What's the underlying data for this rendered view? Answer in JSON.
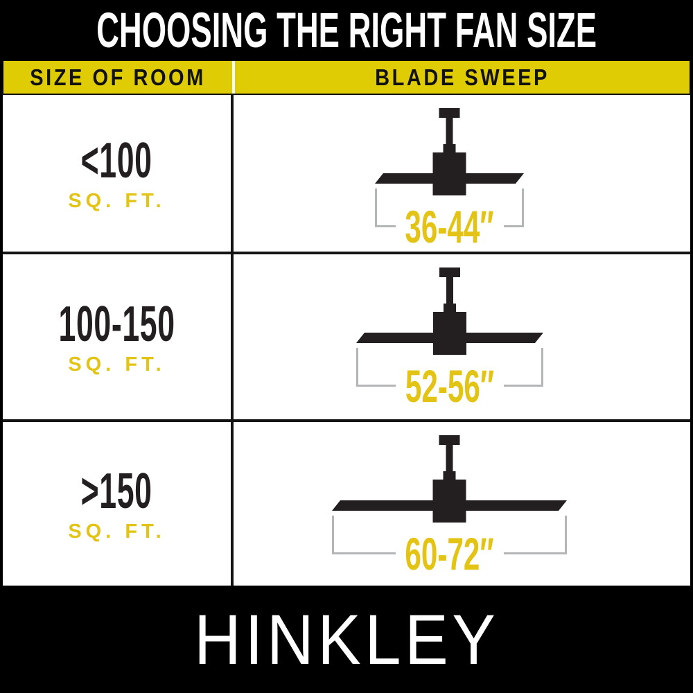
{
  "title": "CHOOSING THE RIGHT FAN SIZE",
  "brand": "HINKLEY",
  "table": {
    "columns": [
      {
        "label": "SIZE OF ROOM"
      },
      {
        "label": "BLADE SWEEP"
      }
    ],
    "rows": [
      {
        "size": "<100",
        "unit": "SQ. FT.",
        "sweep": "36-44″",
        "icon": "ceiling-fan-icon"
      },
      {
        "size": "100-150",
        "unit": "SQ. FT.",
        "sweep": "52-56″",
        "icon": "ceiling-fan-icon"
      },
      {
        "size": ">150",
        "unit": "SQ. FT.",
        "sweep": "60-72″",
        "icon": "ceiling-fan-icon"
      }
    ]
  },
  "colors": {
    "background_black": "#000000",
    "header_band_yellow": "#dfcc04",
    "accent_text_yellow": "#e3c414",
    "dark_text": "#231f20",
    "grid_line_black": "#141414",
    "bracket_gray": "#b3b5b7",
    "white": "#ffffff"
  },
  "chart_data": {
    "type": "table",
    "title": "CHOOSING THE RIGHT FAN SIZE",
    "columns": [
      "SIZE OF ROOM",
      "BLADE SWEEP"
    ],
    "rows": [
      {
        "size_of_room": "<100 SQ. FT.",
        "blade_sweep_inches": "36-44"
      },
      {
        "size_of_room": "100-150 SQ. FT.",
        "blade_sweep_inches": "52-56"
      },
      {
        "size_of_room": ">150 SQ. FT.",
        "blade_sweep_inches": "60-72"
      }
    ]
  }
}
